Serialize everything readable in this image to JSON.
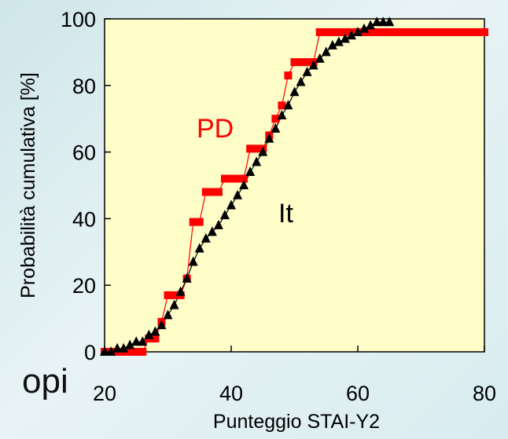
{
  "background_text": "opi",
  "chart_data": {
    "type": "line",
    "xlabel": "Punteggio STAI-Y2",
    "ylabel": "Probabilità cumulativa [%]",
    "xlim": [
      20,
      80
    ],
    "ylim": [
      0,
      100
    ],
    "xticks": [
      20,
      40,
      60,
      80
    ],
    "yticks": [
      0,
      20,
      40,
      60,
      80,
      100
    ],
    "grid": false,
    "plot_background": "#fffdc8",
    "series": [
      {
        "name": "PD",
        "color": "#ff0000",
        "marker": "square",
        "x": [
          20,
          21,
          22,
          23,
          24,
          25,
          26,
          27,
          28,
          29,
          30,
          31,
          32,
          33,
          34,
          35,
          36,
          37,
          38,
          39,
          40,
          41,
          42,
          43,
          44,
          45,
          46,
          47,
          48,
          49,
          50,
          51,
          52,
          53,
          54,
          55,
          56,
          57,
          58,
          59,
          60,
          61,
          62,
          63,
          64,
          65,
          66,
          67,
          68,
          69,
          70,
          71,
          72,
          73,
          74,
          75,
          76,
          77,
          78,
          79,
          80
        ],
        "y": [
          0,
          0,
          0,
          0,
          0,
          0,
          0,
          4,
          4,
          9,
          17,
          17,
          17,
          22,
          39,
          39,
          48,
          48,
          48,
          52,
          52,
          52,
          52,
          61,
          61,
          61,
          65,
          70,
          74,
          83,
          87,
          87,
          87,
          87,
          96,
          96,
          96,
          96,
          96,
          96,
          96,
          96,
          96,
          96,
          96,
          96,
          96,
          96,
          96,
          96,
          96,
          96,
          96,
          96,
          96,
          96,
          96,
          96,
          96,
          96,
          96
        ]
      },
      {
        "name": "It",
        "color": "#000000",
        "marker": "triangle",
        "x": [
          20,
          21,
          22,
          23,
          24,
          25,
          26,
          27,
          28,
          29,
          30,
          31,
          32,
          33,
          34,
          35,
          36,
          37,
          38,
          39,
          40,
          41,
          42,
          43,
          44,
          45,
          46,
          47,
          48,
          49,
          50,
          51,
          52,
          53,
          54,
          55,
          56,
          57,
          58,
          59,
          60,
          61,
          62,
          63,
          64,
          65
        ],
        "y": [
          0,
          0,
          1,
          1,
          2,
          3,
          3,
          5,
          6,
          8,
          11,
          14,
          18,
          22,
          27,
          31,
          34,
          36,
          38,
          41,
          44,
          47,
          50,
          54,
          57,
          60,
          64,
          67,
          71,
          74,
          78,
          81,
          84,
          86,
          88,
          90,
          92,
          93,
          94,
          95,
          96,
          97,
          98,
          99,
          99,
          99
        ]
      }
    ]
  }
}
